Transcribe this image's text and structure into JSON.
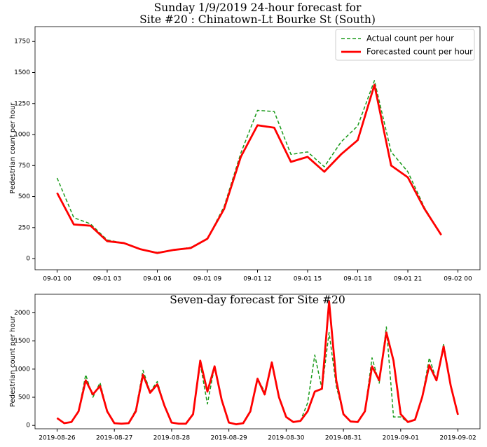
{
  "chart_data": [
    {
      "type": "line",
      "title": [
        "Sunday 1/9/2019 24-hour forecast for",
        "Site #20 : Chinatown-Lt Bourke St (South)"
      ],
      "y_label": "Pedestrian count per hour",
      "x": [
        "09-01 00",
        "09-01 01",
        "09-01 02",
        "09-01 03",
        "09-01 04",
        "09-01 05",
        "09-01 06",
        "09-01 07",
        "09-01 08",
        "09-01 09",
        "09-01 10",
        "09-01 11",
        "09-01 12",
        "09-01 13",
        "09-01 14",
        "09-01 15",
        "09-01 16",
        "09-01 17",
        "09-01 18",
        "09-01 19",
        "09-01 20",
        "09-01 21",
        "09-01 22",
        "09-01 23"
      ],
      "xticks": [
        "09-01 00",
        "09-01 03",
        "09-01 06",
        "09-01 09",
        "09-01 12",
        "09-01 15",
        "09-01 18",
        "09-01 21",
        "09-02 00"
      ],
      "series": [
        {
          "name": "Actual count per hour",
          "color": "#1a9a1a",
          "linestyle": "dashed",
          "values": [
            650,
            330,
            280,
            150,
            125,
            75,
            50,
            70,
            90,
            160,
            420,
            850,
            1195,
            1185,
            840,
            860,
            740,
            940,
            1070,
            1435,
            860,
            700,
            410,
            190
          ]
        },
        {
          "name": "Forecasted count per hour",
          "color": "#ff0000",
          "linestyle": "solid",
          "values": [
            530,
            275,
            265,
            140,
            125,
            75,
            45,
            70,
            85,
            160,
            400,
            820,
            1075,
            1055,
            780,
            820,
            700,
            840,
            955,
            1400,
            750,
            655,
            400,
            190
          ]
        }
      ],
      "ylim": [
        -90,
        1870
      ],
      "yticks": [
        0,
        250,
        500,
        750,
        1000,
        1250,
        1500,
        1750
      ],
      "legend": "upper right"
    },
    {
      "type": "line",
      "title": [
        "Seven-day forecast for Site #20"
      ],
      "y_label": "Pedestrian count per hour",
      "x": [
        "2019-08-26 00",
        "2019-08-26 03",
        "2019-08-26 06",
        "2019-08-26 09",
        "2019-08-26 12",
        "2019-08-26 15",
        "2019-08-26 18",
        "2019-08-26 21",
        "2019-08-27 00",
        "2019-08-27 03",
        "2019-08-27 06",
        "2019-08-27 09",
        "2019-08-27 12",
        "2019-08-27 15",
        "2019-08-27 18",
        "2019-08-27 21",
        "2019-08-28 00",
        "2019-08-28 03",
        "2019-08-28 06",
        "2019-08-28 09",
        "2019-08-28 12",
        "2019-08-28 15",
        "2019-08-28 18",
        "2019-08-28 21",
        "2019-08-29 00",
        "2019-08-29 03",
        "2019-08-29 06",
        "2019-08-29 09",
        "2019-08-29 12",
        "2019-08-29 15",
        "2019-08-29 18",
        "2019-08-29 21",
        "2019-08-30 00",
        "2019-08-30 03",
        "2019-08-30 06",
        "2019-08-30 09",
        "2019-08-30 12",
        "2019-08-30 15",
        "2019-08-30 18",
        "2019-08-30 21",
        "2019-08-31 00",
        "2019-08-31 03",
        "2019-08-31 06",
        "2019-08-31 09",
        "2019-08-31 12",
        "2019-08-31 15",
        "2019-08-31 18",
        "2019-08-31 21",
        "2019-09-01 00",
        "2019-09-01 03",
        "2019-09-01 06",
        "2019-09-01 09",
        "2019-09-01 12",
        "2019-09-01 15",
        "2019-09-01 18",
        "2019-09-01 21",
        "2019-09-02 00"
      ],
      "xticks": [
        "2019-08-26",
        "2019-08-27",
        "2019-08-28",
        "2019-08-29",
        "2019-08-30",
        "2019-08-31",
        "2019-09-01",
        "2019-09-02"
      ],
      "series": [
        {
          "name": "Actual count per hour",
          "color": "#1a9a1a",
          "linestyle": "dashed",
          "values": [
            130,
            40,
            60,
            250,
            900,
            500,
            760,
            250,
            40,
            30,
            40,
            280,
            980,
            600,
            780,
            350,
            50,
            30,
            30,
            200,
            1100,
            380,
            1050,
            450,
            50,
            20,
            40,
            250,
            830,
            600,
            1100,
            500,
            150,
            60,
            80,
            400,
            1250,
            650,
            1650,
            700,
            200,
            70,
            60,
            250,
            1200,
            750,
            1750,
            150,
            150,
            60,
            100,
            500,
            1200,
            800,
            1450,
            700,
            190
          ]
        },
        {
          "name": "Forecasted count per hour",
          "color": "#ff0000",
          "linestyle": "solid",
          "values": [
            130,
            40,
            60,
            250,
            800,
            550,
            700,
            250,
            40,
            30,
            40,
            250,
            900,
            580,
            730,
            350,
            50,
            30,
            30,
            200,
            1150,
            600,
            1050,
            450,
            50,
            20,
            40,
            250,
            830,
            550,
            1120,
            500,
            150,
            60,
            80,
            250,
            600,
            650,
            2200,
            800,
            200,
            70,
            60,
            250,
            1050,
            800,
            1650,
            1150,
            200,
            60,
            100,
            500,
            1070,
            800,
            1400,
            700,
            190
          ]
        }
      ],
      "ylim": [
        -60,
        2330
      ],
      "yticks": [
        0,
        500,
        1000,
        1500,
        2000
      ]
    }
  ]
}
